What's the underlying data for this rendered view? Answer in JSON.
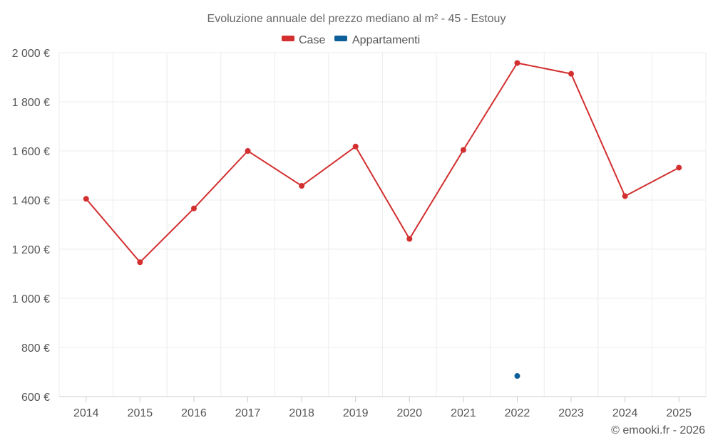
{
  "chart_data": {
    "type": "line",
    "title": "Evoluzione annuale del prezzo mediano al m² - 45 - Estouy",
    "x": [
      "2014",
      "2015",
      "2016",
      "2017",
      "2018",
      "2019",
      "2020",
      "2021",
      "2022",
      "2023",
      "2024",
      "2025"
    ],
    "series": [
      {
        "name": "Case",
        "color": "#d32f2f",
        "values": [
          1405,
          1147,
          1366,
          1600,
          1458,
          1618,
          1242,
          1604,
          1958,
          1914,
          1416,
          1532
        ]
      },
      {
        "name": "Appartamenti",
        "color": "#0d5f99",
        "values": [
          null,
          null,
          null,
          null,
          null,
          null,
          null,
          null,
          684,
          null,
          null,
          null
        ]
      }
    ],
    "yticks": [
      "600 €",
      "800 €",
      "1 000 €",
      "1 200 €",
      "1 400 €",
      "1 600 €",
      "1 800 €",
      "2 000 €"
    ],
    "ytick_values": [
      600,
      800,
      1000,
      1200,
      1400,
      1600,
      1800,
      2000
    ],
    "ylim": [
      600,
      2000
    ],
    "grid": true,
    "legend": "top-center"
  },
  "credit": "© emooki.fr - 2026"
}
